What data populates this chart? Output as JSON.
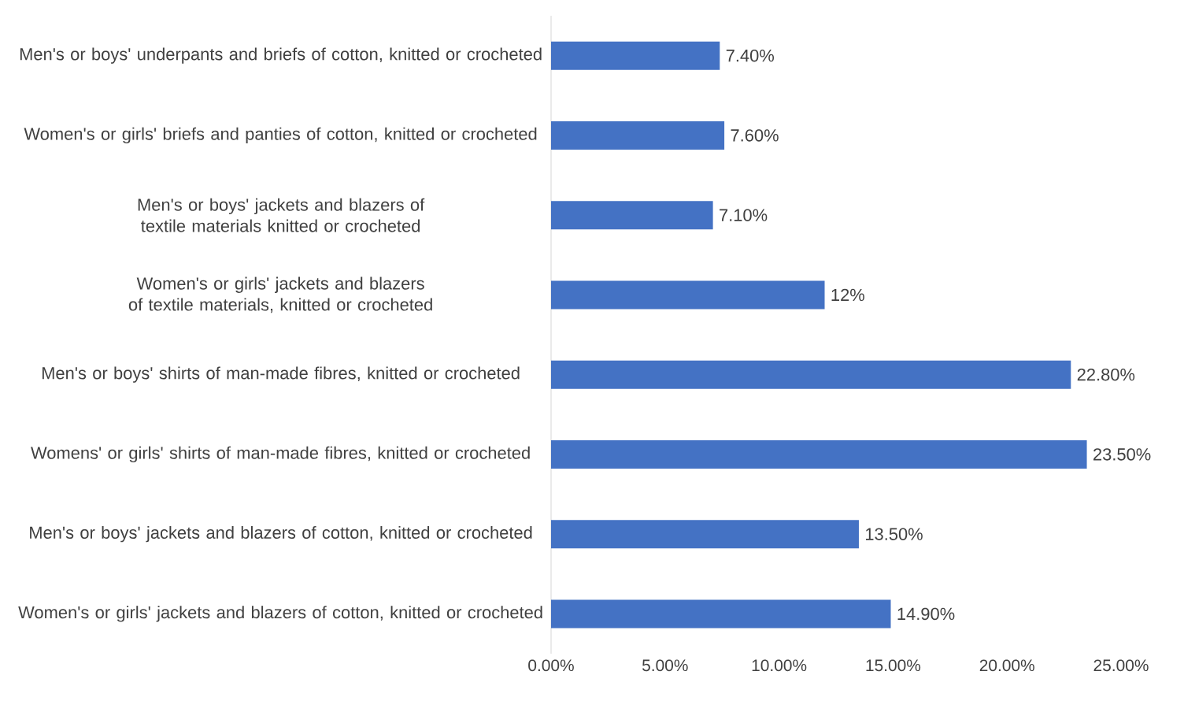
{
  "chart_data": {
    "type": "bar",
    "orientation": "horizontal",
    "categories": [
      "Men's or boys' underpants and briefs of cotton, knitted or crocheted",
      "Women's or girls' briefs and panties of cotton, knitted or crocheted",
      "Men's or boys' jackets and blazers of textile materials knitted or crocheted",
      "Women's or girls' jackets and blazers of textile materials, knitted or crocheted",
      "Men's or boys' shirts of man-made fibres, knitted or crocheted",
      "Womens' or girls' shirts of man-made fibres, knitted or crocheted",
      "Men's or boys' jackets and blazers of cotton, knitted or crocheted",
      "Women's or girls' jackets and blazers of cotton, knitted or crocheted"
    ],
    "values": [
      7.4,
      7.6,
      7.1,
      12,
      22.8,
      23.5,
      13.5,
      14.9
    ],
    "value_labels": [
      "7.40%",
      "7.60%",
      "7.10%",
      "12%",
      "22.80%",
      "23.50%",
      "13.50%",
      "14.90%"
    ],
    "color": "#4472c4",
    "xlim": [
      0,
      25
    ],
    "xticks": [
      {
        "value": 0,
        "label": "0.00%"
      },
      {
        "value": 5,
        "label": "5.00%"
      },
      {
        "value": 10,
        "label": "10.00%"
      },
      {
        "value": 15,
        "label": "15.00%"
      },
      {
        "value": 20,
        "label": "20.00%"
      },
      {
        "value": 25,
        "label": "25.00%"
      }
    ],
    "grid": false
  }
}
